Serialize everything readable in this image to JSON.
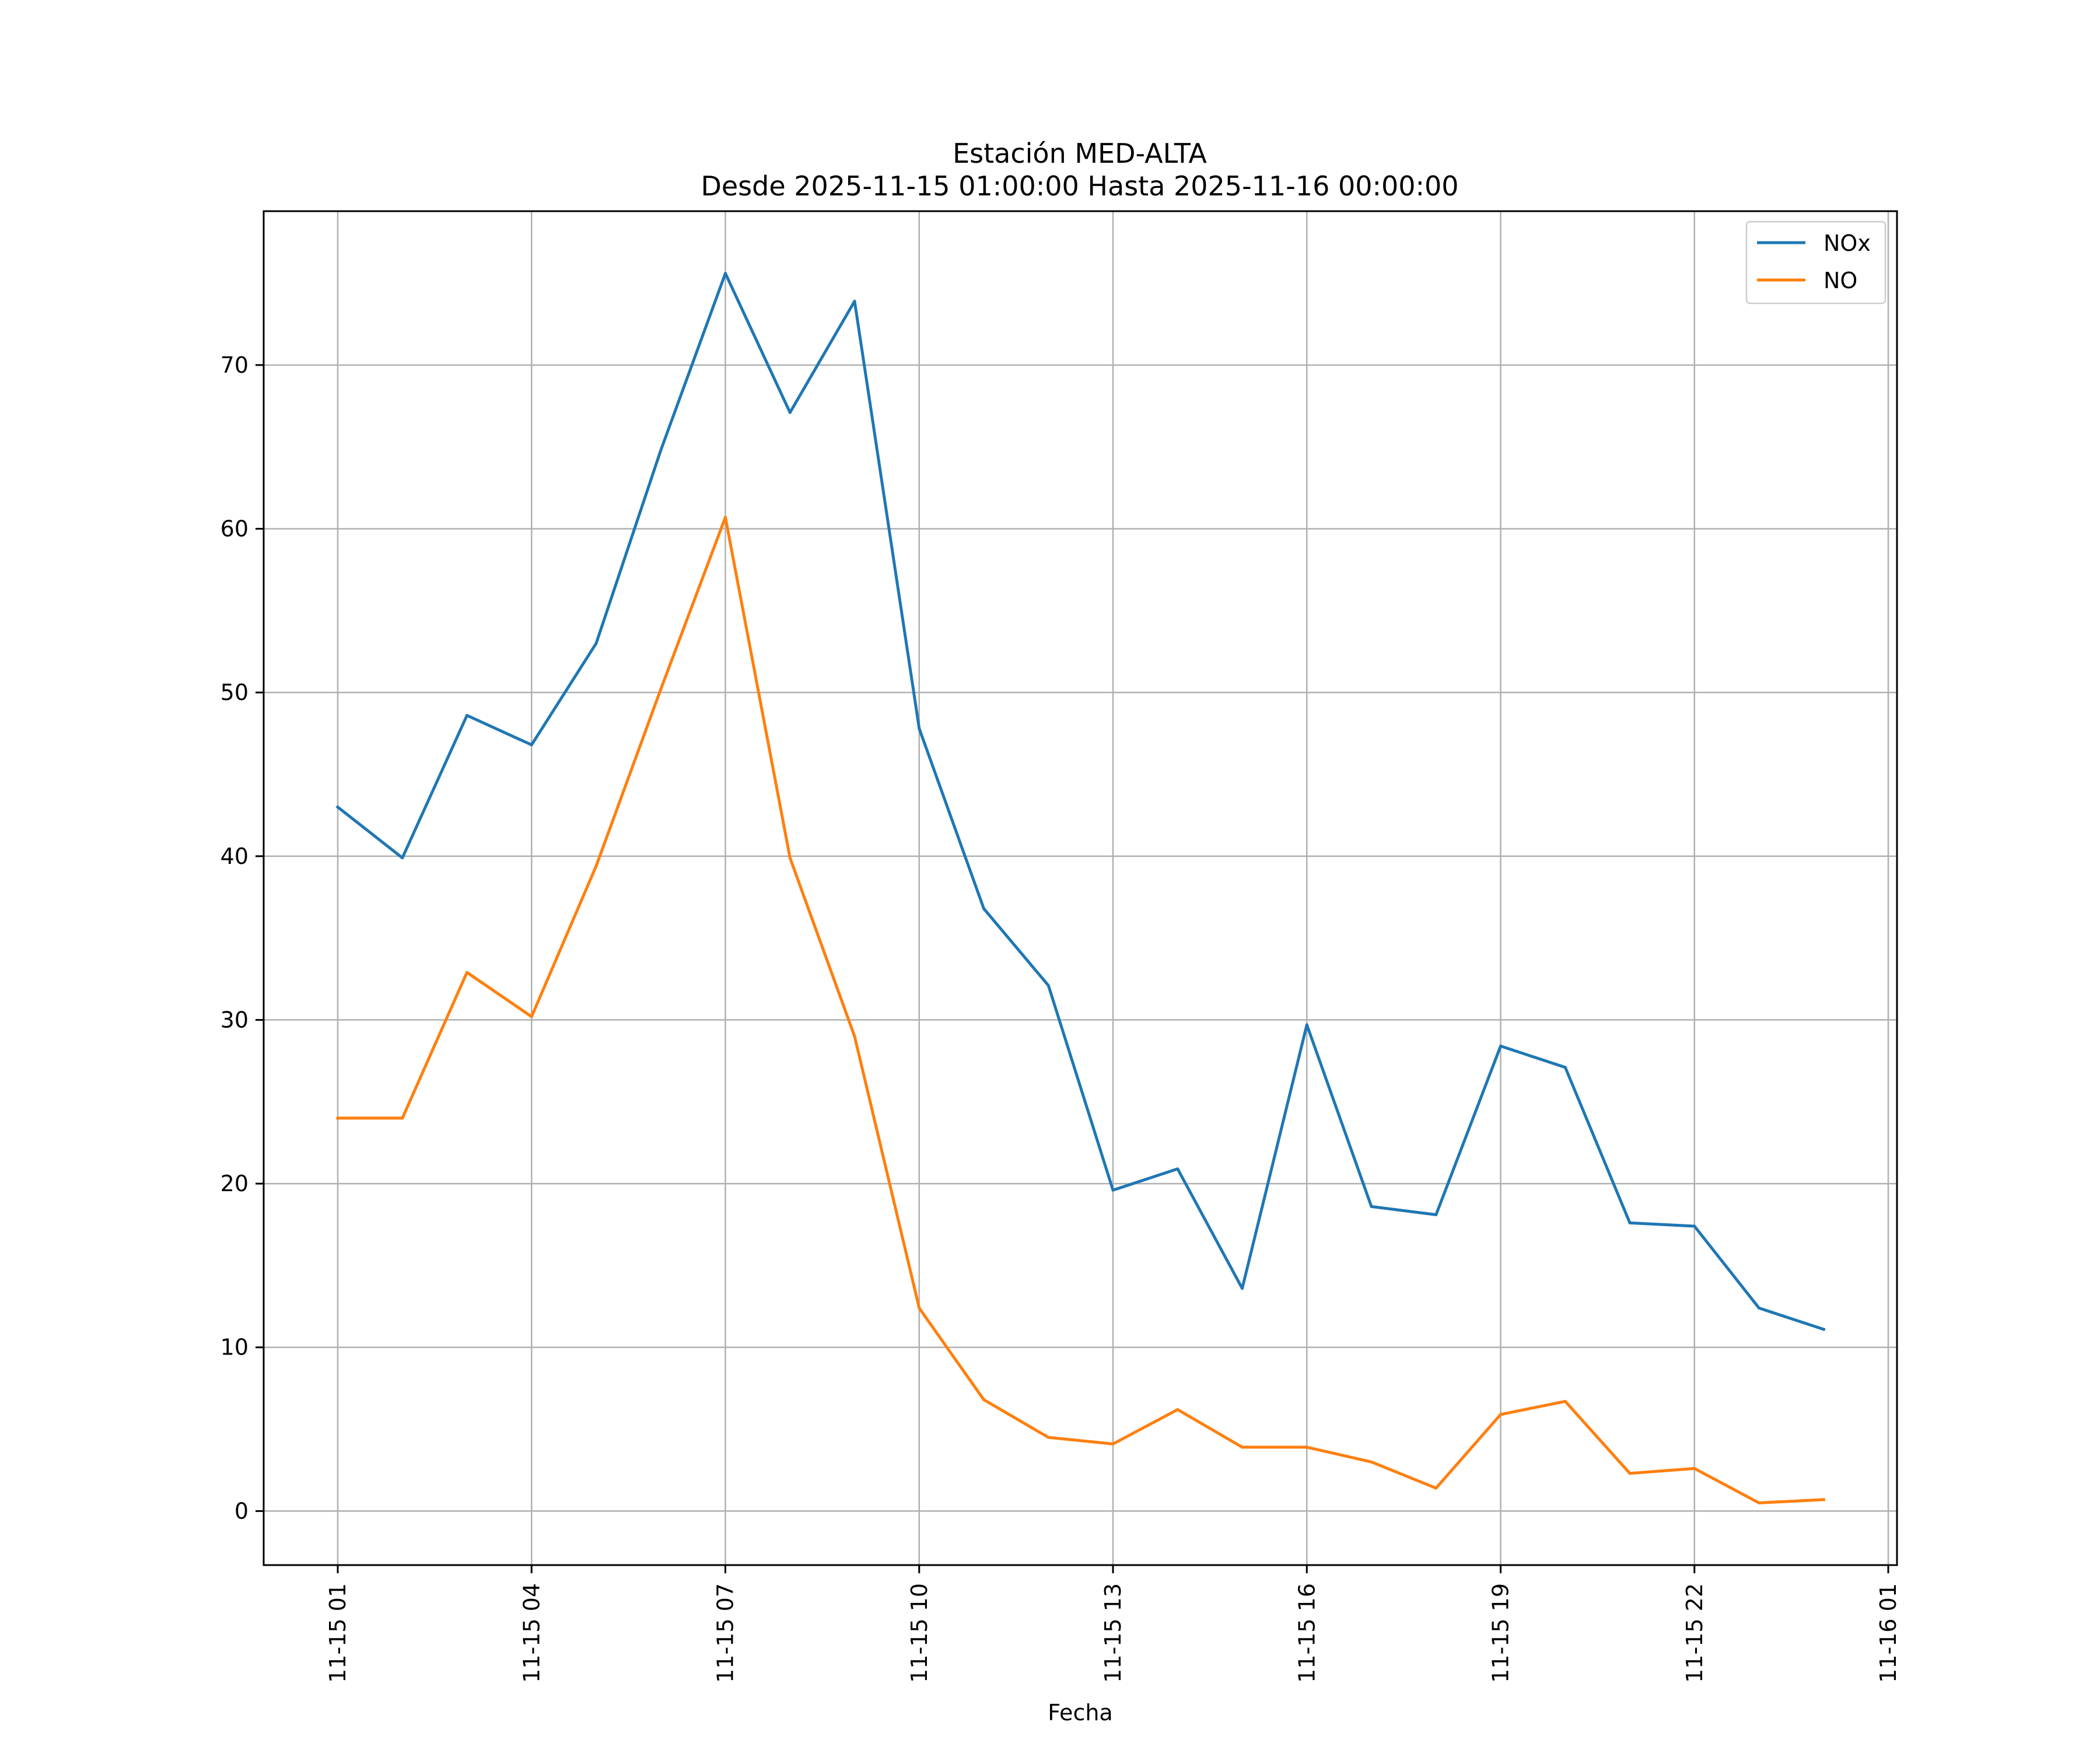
{
  "chart_data": {
    "type": "line",
    "title": "Estación MED-ALTA",
    "subtitle": "Desde 2025-11-15 01:00:00 Hasta 2025-11-16 00:00:00",
    "xlabel": "Fecha",
    "ylabel": "",
    "x": [
      "2025-11-15 01:00",
      "2025-11-15 02:00",
      "2025-11-15 03:00",
      "2025-11-15 04:00",
      "2025-11-15 05:00",
      "2025-11-15 06:00",
      "2025-11-15 07:00",
      "2025-11-15 08:00",
      "2025-11-15 09:00",
      "2025-11-15 10:00",
      "2025-11-15 11:00",
      "2025-11-15 12:00",
      "2025-11-15 13:00",
      "2025-11-15 14:00",
      "2025-11-15 15:00",
      "2025-11-15 16:00",
      "2025-11-15 17:00",
      "2025-11-15 18:00",
      "2025-11-15 19:00",
      "2025-11-15 20:00",
      "2025-11-15 21:00",
      "2025-11-15 22:00",
      "2025-11-15 23:00",
      "2025-11-16 00:00"
    ],
    "series": [
      {
        "name": "NOx",
        "color": "#1f77b4",
        "values": [
          43.0,
          39.9,
          48.6,
          46.8,
          53.0,
          64.8,
          75.6,
          67.1,
          73.9,
          47.8,
          36.8,
          32.1,
          19.6,
          20.9,
          13.6,
          29.7,
          18.6,
          18.1,
          28.4,
          27.1,
          17.6,
          17.4,
          12.4,
          11.1
        ]
      },
      {
        "name": "NO",
        "color": "#ff7f0e",
        "values": [
          24.0,
          24.0,
          32.9,
          30.2,
          39.4,
          50.2,
          60.7,
          39.9,
          29.0,
          12.4,
          6.8,
          4.5,
          4.1,
          6.2,
          3.9,
          3.9,
          3.0,
          1.4,
          5.9,
          6.7,
          2.3,
          2.6,
          0.5,
          0.7
        ]
      }
    ],
    "x_ticks": [
      "11-15 01",
      "11-15 04",
      "11-15 07",
      "11-15 10",
      "11-15 13",
      "11-15 16",
      "11-15 19",
      "11-15 22",
      "11-16 01"
    ],
    "y_ticks": [
      0,
      10,
      20,
      30,
      40,
      50,
      60,
      70
    ],
    "ylim": [
      -3.3,
      79.4
    ],
    "grid": true,
    "legend_position": "top-right"
  }
}
